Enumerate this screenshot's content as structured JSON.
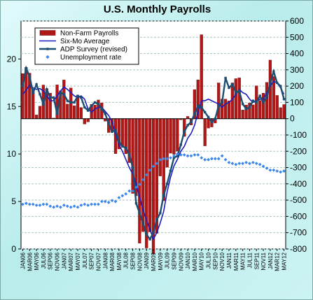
{
  "title": "U.S. Monthly Payrolls",
  "colors": {
    "bar": "#b01717",
    "bar_edge": "#5a0000",
    "six_mo": "#1c1cbf",
    "adp": "#1c4e72",
    "unemp": "#3a86ea",
    "grid": "#a7c3c3",
    "plot_bg": "#ffffff"
  },
  "chart_data": {
    "type": "bar",
    "title": "U.S. Monthly Payrolls",
    "grid": true,
    "legend": "top-left",
    "y_left": {
      "label": "",
      "range": [
        0,
        24
      ],
      "ticks": [
        0,
        5,
        10,
        15,
        20
      ]
    },
    "y_right": {
      "label": "",
      "range": [
        -800,
        600
      ],
      "ticks": [
        -800,
        -700,
        -600,
        -500,
        -400,
        -300,
        -200,
        -100,
        0,
        100,
        200,
        300,
        400,
        500,
        600
      ]
    },
    "x_tick_labels": [
      "JAN06",
      "MAR06",
      "MAY06",
      "JUL06",
      "SEP06",
      "NOV06",
      "JAN07",
      "MAR07",
      "MAY07",
      "JUL07",
      "SEP07",
      "NOV07",
      "JAN08",
      "MAR08",
      "MAY08",
      "JUL08",
      "SEP08",
      "NOV08",
      "JAN09",
      "MAR09",
      "MAY09",
      "JUL09",
      "SEP09",
      "NOV09",
      "JAN10",
      "MAR10",
      "MAY10",
      "JUL10",
      "SEP10",
      "NOV10",
      "JAN11",
      "MAR11",
      "MAY11",
      "JUL11",
      "SEP11",
      "NOV11",
      "JAN12",
      "MAR12",
      "MAY12"
    ],
    "months": [
      "Jan06",
      "Feb06",
      "Mar06",
      "Apr06",
      "May06",
      "Jun06",
      "Jul06",
      "Aug06",
      "Sep06",
      "Oct06",
      "Nov06",
      "Dec06",
      "Jan07",
      "Feb07",
      "Mar07",
      "Apr07",
      "May07",
      "Jun07",
      "Jul07",
      "Aug07",
      "Sep07",
      "Oct07",
      "Nov07",
      "Dec07",
      "Jan08",
      "Feb08",
      "Mar08",
      "Apr08",
      "May08",
      "Jun08",
      "Jul08",
      "Aug08",
      "Sep08",
      "Oct08",
      "Nov08",
      "Dec08",
      "Jan09",
      "Feb09",
      "Mar09",
      "Apr09",
      "May09",
      "Jun09",
      "Jul09",
      "Aug09",
      "Sep09",
      "Oct09",
      "Nov09",
      "Dec09",
      "Jan10",
      "Feb10",
      "Mar10",
      "Apr10",
      "May10",
      "Jun10",
      "Jul10",
      "Aug10",
      "Sep10",
      "Oct10",
      "Nov10",
      "Dec10",
      "Jan11",
      "Feb11",
      "Mar11",
      "Apr11",
      "May11",
      "Jun11",
      "Jul11",
      "Aug11",
      "Sep11",
      "Oct11",
      "Nov11",
      "Dec11",
      "Jan12",
      "Feb12",
      "Mar12",
      "Apr12",
      "May12"
    ],
    "series": [
      {
        "name": "Non-Farm Payrolls",
        "kind": "bar",
        "axis": "right",
        "values": [
          277,
          315,
          280,
          182,
          23,
          77,
          207,
          184,
          157,
          4,
          208,
          171,
          238,
          90,
          189,
          80,
          143,
          69,
          -33,
          -20,
          88,
          84,
          115,
          97,
          -15,
          -85,
          -79,
          -215,
          -186,
          -169,
          -216,
          -270,
          -459,
          -474,
          -765,
          -694,
          -794,
          -695,
          -830,
          -704,
          -352,
          -504,
          -298,
          -212,
          -219,
          -200,
          -7,
          -109,
          14,
          -39,
          179,
          239,
          516,
          -167,
          -58,
          -51,
          -27,
          220,
          121,
          120,
          110,
          220,
          246,
          251,
          54,
          84,
          96,
          85,
          202,
          112,
          157,
          223,
          360,
          259,
          143,
          68,
          87
        ]
      },
      {
        "name": "Six-Mo Average",
        "kind": "line",
        "axis": "right",
        "values": [
          150,
          175,
          205,
          190,
          180,
          185,
          170,
          140,
          110,
          110,
          140,
          170,
          195,
          180,
          160,
          140,
          130,
          140,
          120,
          60,
          40,
          60,
          70,
          70,
          45,
          20,
          -20,
          -90,
          -160,
          -200,
          -250,
          -300,
          -340,
          -400,
          -480,
          -560,
          -620,
          -680,
          -740,
          -700,
          -640,
          -570,
          -450,
          -360,
          -290,
          -250,
          -200,
          -170,
          -120,
          -90,
          -40,
          40,
          110,
          110,
          120,
          110,
          100,
          90,
          70,
          90,
          100,
          120,
          150,
          180,
          160,
          150,
          120,
          100,
          110,
          120,
          120,
          160,
          200,
          230,
          220,
          190,
          150
        ]
      },
      {
        "name": "ADP Survey (revised)",
        "kind": "line",
        "axis": "right",
        "values": [
          200,
          310,
          260,
          160,
          210,
          150,
          90,
          180,
          130,
          130,
          30,
          160,
          150,
          110,
          100,
          100,
          140,
          130,
          70,
          50,
          80,
          100,
          90,
          60,
          30,
          -30,
          -80,
          -70,
          -140,
          -170,
          -180,
          -220,
          -300,
          -520,
          -580,
          -640,
          -710,
          -740,
          -700,
          -620,
          -580,
          -470,
          -400,
          -320,
          -240,
          -230,
          -160,
          -80,
          -40,
          -20,
          30,
          80,
          70,
          40,
          10,
          -20,
          0,
          80,
          100,
          250,
          190,
          210,
          160,
          170,
          90,
          60,
          70,
          110,
          100,
          140,
          100,
          130,
          220,
          290,
          220,
          200,
          120
        ]
      },
      {
        "name": "Unemployment rate",
        "kind": "marker",
        "axis": "left",
        "values": [
          4.7,
          4.8,
          4.7,
          4.7,
          4.6,
          4.6,
          4.7,
          4.7,
          4.5,
          4.4,
          4.5,
          4.4,
          4.6,
          4.5,
          4.4,
          4.5,
          4.4,
          4.6,
          4.7,
          4.6,
          4.7,
          4.7,
          4.7,
          5.0,
          5.0,
          4.9,
          5.1,
          5.0,
          5.4,
          5.6,
          5.8,
          6.1,
          6.1,
          6.5,
          6.8,
          7.3,
          7.8,
          8.3,
          8.7,
          9.0,
          9.4,
          9.5,
          9.5,
          9.6,
          9.8,
          10.0,
          9.9,
          9.9,
          9.8,
          9.8,
          9.9,
          9.9,
          9.6,
          9.4,
          9.4,
          9.5,
          9.5,
          9.5,
          9.8,
          9.4,
          9.1,
          9.0,
          8.9,
          9.0,
          9.0,
          9.1,
          9.0,
          9.1,
          9.0,
          8.9,
          8.7,
          8.5,
          8.3,
          8.3,
          8.2,
          8.1,
          8.2
        ]
      }
    ]
  }
}
